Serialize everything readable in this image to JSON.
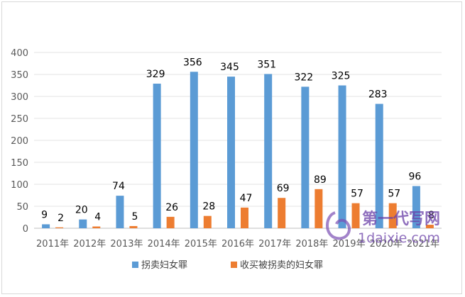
{
  "chart_data": {
    "type": "bar",
    "categories": [
      "2011年",
      "2012年",
      "2013年",
      "2014年",
      "2015年",
      "2016年",
      "2017年",
      "2018年",
      "2019年",
      "2020年",
      "2021年"
    ],
    "series": [
      {
        "name": "拐卖妇女罪",
        "color": "#5b9bd5",
        "values": [
          9,
          20,
          74,
          329,
          356,
          345,
          351,
          322,
          325,
          283,
          96
        ]
      },
      {
        "name": "收买被拐卖的妇女罪",
        "color": "#ed7d31",
        "values": [
          2,
          4,
          5,
          26,
          28,
          47,
          69,
          89,
          57,
          57,
          8
        ]
      }
    ],
    "ylim": [
      0,
      400
    ],
    "yticks": [
      0,
      50,
      100,
      150,
      200,
      250,
      300,
      350,
      400
    ],
    "grid": true,
    "legend": "bottom",
    "data_labels": true
  },
  "watermark": {
    "text_top": "第一代写网",
    "text_bottom": "1daixie.com"
  }
}
